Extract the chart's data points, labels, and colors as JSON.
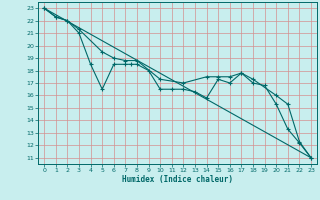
{
  "xlabel": "Humidex (Indice chaleur)",
  "bg_color": "#c8eeee",
  "plot_bg_color": "#c8eeee",
  "grid_color": "#d49090",
  "line_color": "#006868",
  "xlim": [
    -0.5,
    23.5
  ],
  "ylim": [
    10.5,
    23.5
  ],
  "xticks": [
    0,
    1,
    2,
    3,
    4,
    5,
    6,
    7,
    8,
    9,
    10,
    11,
    12,
    13,
    14,
    15,
    16,
    17,
    18,
    19,
    20,
    21,
    22,
    23
  ],
  "yticks": [
    11,
    12,
    13,
    14,
    15,
    16,
    17,
    18,
    19,
    20,
    21,
    22,
    23
  ],
  "line1_x": [
    0,
    1,
    2,
    3,
    4,
    5,
    6,
    7,
    7.5,
    8,
    9,
    10,
    11,
    12,
    13,
    14,
    15,
    16,
    17,
    18,
    19,
    20,
    21,
    22,
    23
  ],
  "line1_y": [
    23,
    22.3,
    22.0,
    21.0,
    18.5,
    16.5,
    18.5,
    18.5,
    18.5,
    18.5,
    18.0,
    16.5,
    16.5,
    16.5,
    16.3,
    15.8,
    17.3,
    17.0,
    17.8,
    17.0,
    16.8,
    15.3,
    13.3,
    12.2,
    11.0
  ],
  "line2_x": [
    0,
    23
  ],
  "line2_y": [
    23,
    11
  ],
  "line3_x": [
    0,
    1,
    2,
    3,
    5,
    6,
    7,
    8,
    10,
    12,
    14,
    15,
    16,
    17,
    18,
    20,
    21,
    22,
    23
  ],
  "line3_y": [
    23,
    22.3,
    22.0,
    21.3,
    19.5,
    19.0,
    18.8,
    18.8,
    17.3,
    17.0,
    17.5,
    17.5,
    17.5,
    17.8,
    17.3,
    16.0,
    15.3,
    12.3,
    11.0
  ]
}
